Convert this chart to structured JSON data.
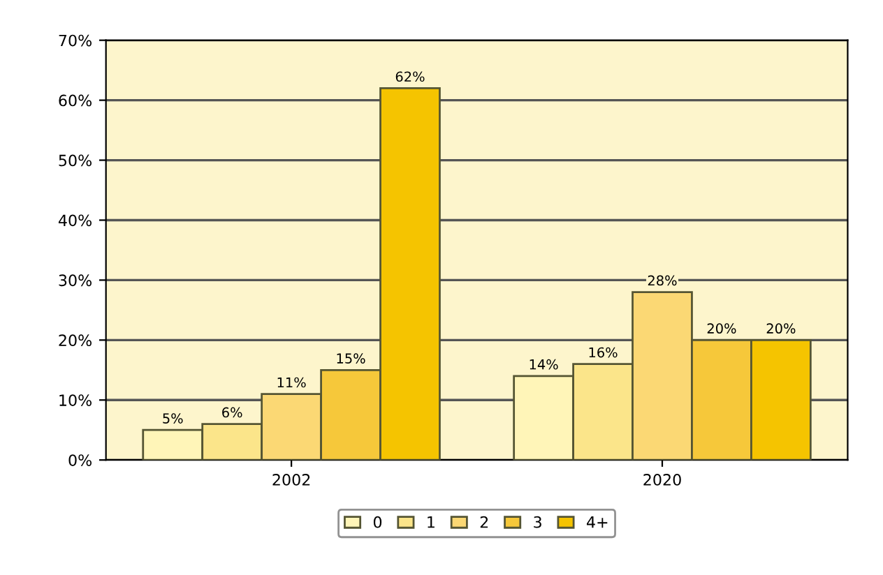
{
  "chart_data": {
    "type": "bar",
    "categories": [
      "2002",
      "2020"
    ],
    "series": [
      {
        "name": "0",
        "color": "#fff5b8",
        "values": [
          5,
          14
        ],
        "value_labels": [
          "5%",
          "14%"
        ]
      },
      {
        "name": "1",
        "color": "#fbe58a",
        "values": [
          6,
          16
        ],
        "value_labels": [
          "6%",
          "16%"
        ]
      },
      {
        "name": "2",
        "color": "#fbd874",
        "values": [
          11,
          28
        ],
        "value_labels": [
          "11%",
          "28%"
        ]
      },
      {
        "name": "3",
        "color": "#f6c83a",
        "values": [
          15,
          20
        ],
        "value_labels": [
          "15%",
          "20%"
        ]
      },
      {
        "name": "4+",
        "color": "#f5c400",
        "values": [
          62,
          20
        ],
        "value_labels": [
          "62%",
          "20%"
        ]
      }
    ],
    "ylim": [
      0,
      70
    ],
    "yticks": [
      {
        "value": 0,
        "label": "0%"
      },
      {
        "value": 10,
        "label": "10%"
      },
      {
        "value": 20,
        "label": "20%"
      },
      {
        "value": 30,
        "label": "30%"
      },
      {
        "value": 40,
        "label": "40%"
      },
      {
        "value": 50,
        "label": "50%"
      },
      {
        "value": 60,
        "label": "60%"
      },
      {
        "value": 70,
        "label": "70%"
      }
    ],
    "grid": "y",
    "legend": "bottom"
  }
}
